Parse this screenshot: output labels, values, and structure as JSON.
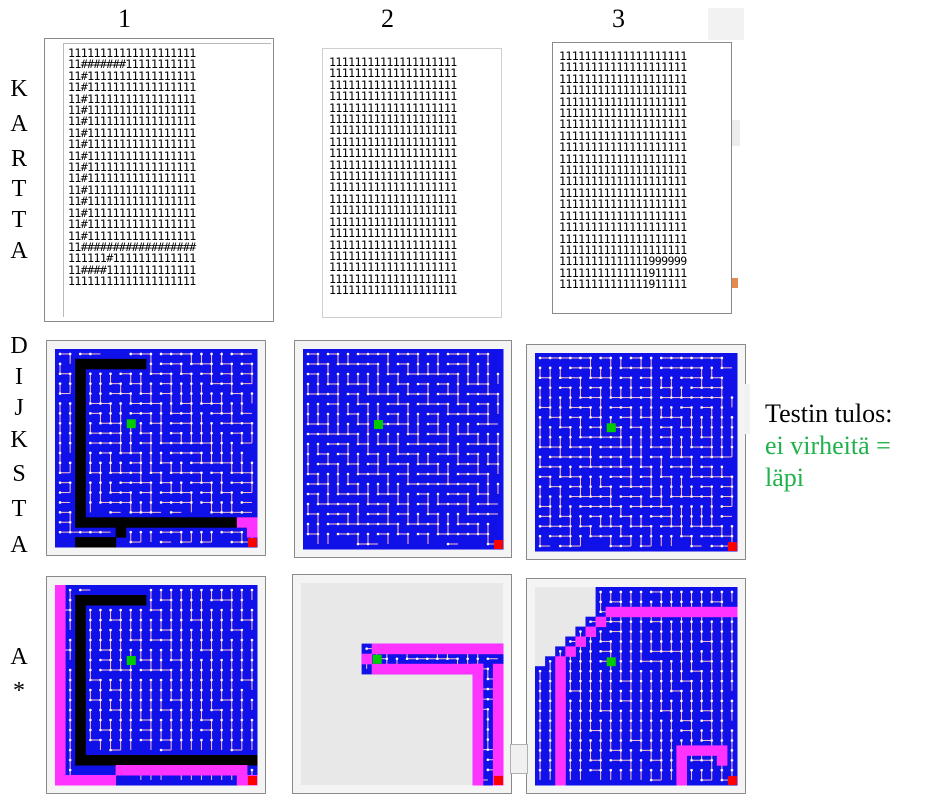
{
  "columns": [
    "1",
    "2",
    "3"
  ],
  "row_labels": {
    "kartta": [
      "K",
      "A",
      "R",
      "T",
      "T",
      "A"
    ],
    "dijksta": [
      "D",
      "I",
      "J",
      "K",
      "S",
      "T",
      "A"
    ],
    "astar": [
      "A",
      "*"
    ]
  },
  "maps": [
    [
      "11111111111111111111",
      "11#######11111111111",
      "11#11111111111111111",
      "11#11111111111111111",
      "11#11111111111111111",
      "11#11111111111111111",
      "11#11111111111111111",
      "11#11111111111111111",
      "11#11111111111111111",
      "11#11111111111111111",
      "11#11111111111111111",
      "11#11111111111111111",
      "11#11111111111111111",
      "11#11111111111111111",
      "11#11111111111111111",
      "11#11111111111111111",
      "11#11111111111111111",
      "11##################",
      "111111#1111111111111",
      "11####11111111111111",
      "11111111111111111111"
    ],
    [
      "11111111111111111111",
      "11111111111111111111",
      "11111111111111111111",
      "11111111111111111111",
      "11111111111111111111",
      "11111111111111111111",
      "11111111111111111111",
      "11111111111111111111",
      "11111111111111111111",
      "11111111111111111111",
      "11111111111111111111",
      "11111111111111111111",
      "11111111111111111111",
      "11111111111111111111",
      "11111111111111111111",
      "11111111111111111111",
      "11111111111111111111",
      "11111111111111111111",
      "11111111111111111111",
      "11111111111111111111",
      "11111111111111111111"
    ],
    [
      "11111111111111111111",
      "11111111111111111111",
      "11111111111111111111",
      "11111111111111111111",
      "11111111111111111111",
      "11111111111111111111",
      "11111111111111111111",
      "11111111111111111111",
      "11111111111111111111",
      "11111111111111111111",
      "11111111111111111111",
      "11111111111111111111",
      "11111111111111111111",
      "11111111111111111111",
      "11111111111111111111",
      "11111111111111111111",
      "11111111111111111111",
      "11111111111111111111",
      "11111111111111999999",
      "11111111111111911111",
      "11111111111111911111"
    ]
  ],
  "result": {
    "title": "Testin tulos:",
    "line1": "ei virheitä =",
    "line2": "läpi"
  },
  "colors": {
    "grid_bg": "#1010e8",
    "grid_line": "#ffc0c8",
    "wall": "#000000",
    "path": "#ff33ff",
    "start": "#00cc00",
    "goal": "#ff0000",
    "unexplored": "#e8e8e8",
    "success_text": "#22b14c"
  }
}
